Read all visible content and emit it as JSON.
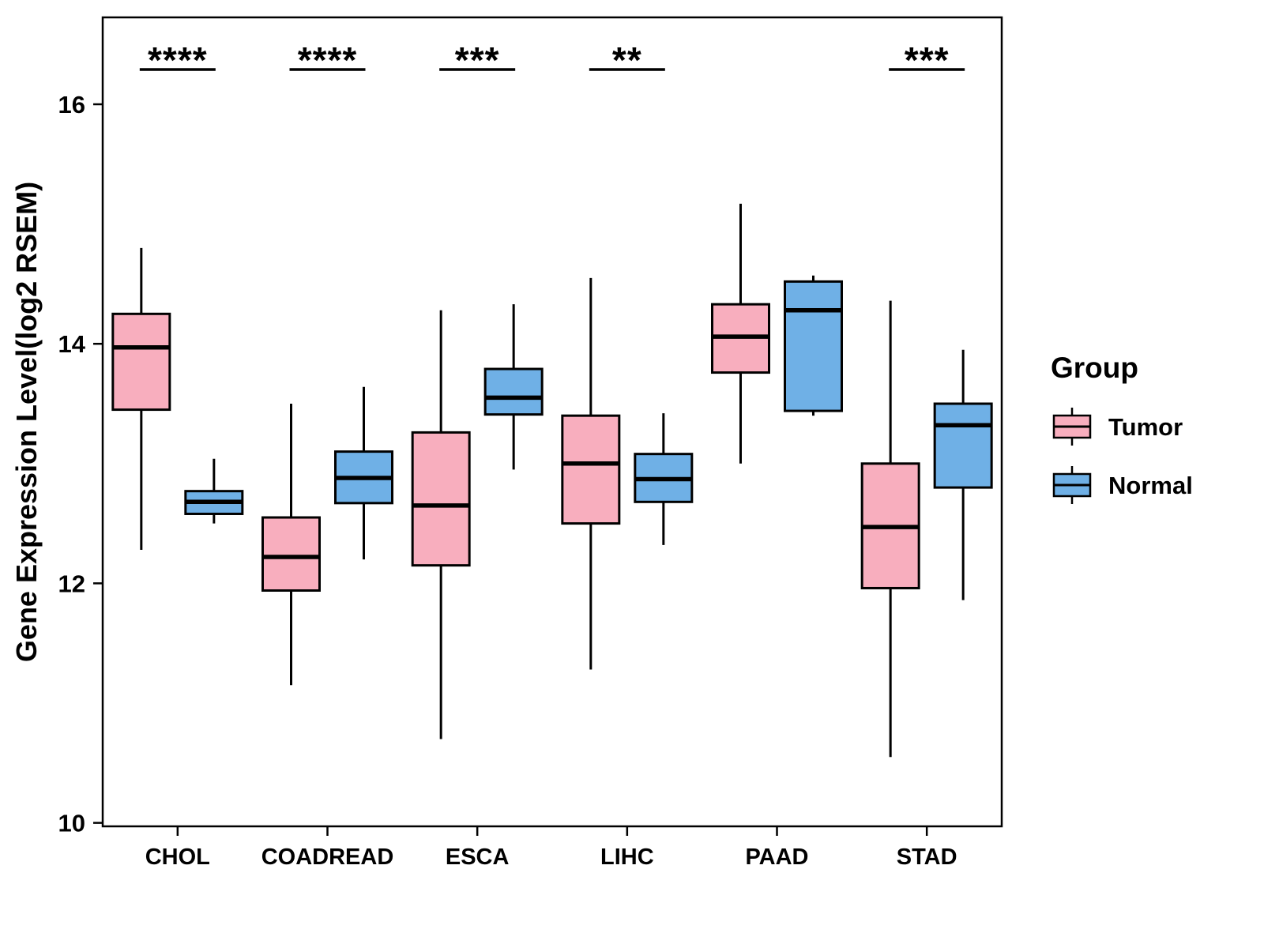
{
  "chart_data": {
    "type": "grouped_boxplot",
    "title": "",
    "ylabel": "Gene Expression Level(log2 RSEM)",
    "ylim": [
      9.95,
      16.75
    ],
    "yticks": [
      10,
      12,
      14,
      16
    ],
    "grid": false,
    "categories": [
      "CHOL",
      "COADREAD",
      "ESCA",
      "LIHC",
      "PAAD",
      "STAD"
    ],
    "significance": [
      "****",
      "****",
      "***",
      "**",
      "",
      "***"
    ],
    "legend": {
      "title": "Group",
      "position": "right",
      "entries": [
        {
          "label": "Tumor",
          "color": "#F8AEBE"
        },
        {
          "label": "Normal",
          "color": "#6FB0E6"
        }
      ]
    },
    "series": [
      {
        "name": "Tumor",
        "color": "#F8AEBE",
        "boxes": [
          {
            "low": 12.28,
            "q1": 13.45,
            "median": 13.97,
            "q3": 14.25,
            "high": 14.8
          },
          {
            "low": 11.15,
            "q1": 11.94,
            "median": 12.22,
            "q3": 12.55,
            "high": 13.5
          },
          {
            "low": 10.7,
            "q1": 12.15,
            "median": 12.65,
            "q3": 13.26,
            "high": 14.28
          },
          {
            "low": 11.28,
            "q1": 12.5,
            "median": 13.0,
            "q3": 13.4,
            "high": 14.55
          },
          {
            "low": 13.0,
            "q1": 13.76,
            "median": 14.06,
            "q3": 14.33,
            "high": 15.17
          },
          {
            "low": 10.55,
            "q1": 11.96,
            "median": 12.47,
            "q3": 13.0,
            "high": 14.36
          }
        ]
      },
      {
        "name": "Normal",
        "color": "#6FB0E6",
        "boxes": [
          {
            "low": 12.5,
            "q1": 12.58,
            "median": 12.68,
            "q3": 12.77,
            "high": 13.04
          },
          {
            "low": 12.2,
            "q1": 12.67,
            "median": 12.88,
            "q3": 13.1,
            "high": 13.64
          },
          {
            "low": 12.95,
            "q1": 13.41,
            "median": 13.55,
            "q3": 13.79,
            "high": 14.33
          },
          {
            "low": 12.32,
            "q1": 12.68,
            "median": 12.87,
            "q3": 13.08,
            "high": 13.42
          },
          {
            "low": 13.4,
            "q1": 13.44,
            "median": 14.28,
            "q3": 14.52,
            "high": 14.57
          },
          {
            "low": 11.86,
            "q1": 12.8,
            "median": 13.32,
            "q3": 13.5,
            "high": 13.95
          }
        ]
      }
    ]
  }
}
